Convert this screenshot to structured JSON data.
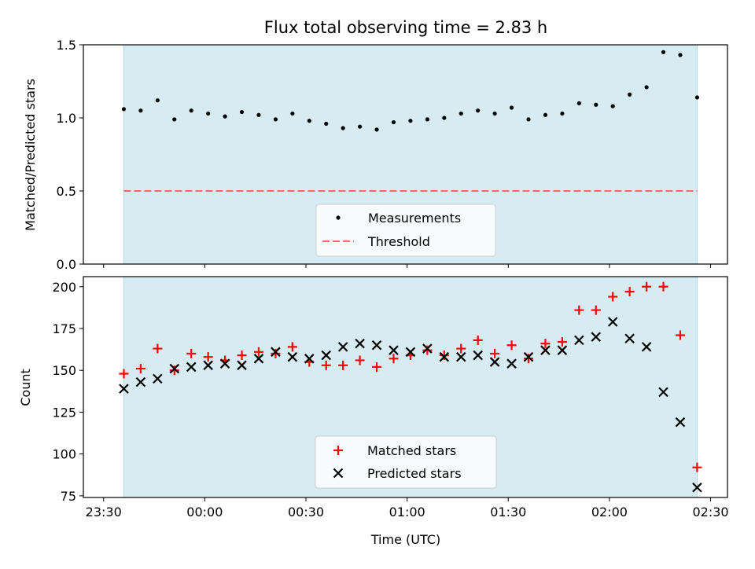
{
  "title": "Flux total observing time = 2.83 h",
  "colors": {
    "shade": "#add8e6",
    "matched": "#ff0000",
    "predicted": "#000000",
    "threshold": "#ff6666",
    "measurement": "#000000"
  },
  "chart_data": [
    {
      "type": "scatter",
      "ylabel": "Matched/Predicted stars",
      "ylim": [
        0,
        1.5
      ],
      "y_ticks": [
        0.0,
        0.5,
        1.0,
        1.5
      ],
      "y_tick_labels": [
        "0.0",
        "0.5",
        "1.0",
        "1.5"
      ],
      "x_tick_labels": [],
      "grid": false,
      "legend_position": "lower-center",
      "shaded_interval": [
        "23:36",
        "02:26"
      ],
      "x": [
        "23:36",
        "23:41",
        "23:46",
        "23:51",
        "23:56",
        "00:01",
        "00:06",
        "00:11",
        "00:16",
        "00:21",
        "00:26",
        "00:31",
        "00:36",
        "00:41",
        "00:46",
        "00:51",
        "00:56",
        "01:01",
        "01:06",
        "01:11",
        "01:16",
        "01:21",
        "01:26",
        "01:31",
        "01:36",
        "01:41",
        "01:46",
        "01:51",
        "01:56",
        "02:01",
        "02:06",
        "02:11",
        "02:16",
        "02:21",
        "02:26"
      ],
      "series": [
        {
          "name": "Measurements",
          "values": [
            1.06,
            1.05,
            1.12,
            0.99,
            1.05,
            1.03,
            1.01,
            1.04,
            1.02,
            0.99,
            1.03,
            0.98,
            0.96,
            0.93,
            0.94,
            0.92,
            0.97,
            0.98,
            0.99,
            1.0,
            1.03,
            1.05,
            1.03,
            1.07,
            0.99,
            1.02,
            1.03,
            1.1,
            1.09,
            1.08,
            1.16,
            1.21,
            1.45,
            1.43,
            1.14
          ]
        }
      ],
      "threshold": {
        "name": "Threshold",
        "value": 0.5
      }
    },
    {
      "type": "scatter",
      "xlabel": "Time (UTC)",
      "ylabel": "Count",
      "ylim": [
        74,
        206
      ],
      "y_ticks": [
        75,
        100,
        125,
        150,
        175,
        200
      ],
      "y_tick_labels": [
        "75",
        "100",
        "125",
        "150",
        "175",
        "200"
      ],
      "x_tick_labels": [
        "23:30",
        "00:00",
        "00:30",
        "01:00",
        "01:30",
        "02:00",
        "02:30"
      ],
      "grid": false,
      "legend_position": "lower-center",
      "shaded_interval": [
        "23:36",
        "02:26"
      ],
      "x": [
        "23:36",
        "23:41",
        "23:46",
        "23:51",
        "23:56",
        "00:01",
        "00:06",
        "00:11",
        "00:16",
        "00:21",
        "00:26",
        "00:31",
        "00:36",
        "00:41",
        "00:46",
        "00:51",
        "00:56",
        "01:01",
        "01:06",
        "01:11",
        "01:16",
        "01:21",
        "01:26",
        "01:31",
        "01:36",
        "01:41",
        "01:46",
        "01:51",
        "01:56",
        "02:01",
        "02:06",
        "02:11",
        "02:16",
        "02:21",
        "02:26"
      ],
      "series": [
        {
          "name": "Matched stars",
          "marker": "plus",
          "values": [
            148,
            151,
            163,
            150,
            160,
            158,
            156,
            159,
            161,
            160,
            164,
            155,
            153,
            153,
            156,
            152,
            157,
            159,
            162,
            159,
            163,
            168,
            160,
            165,
            157,
            166,
            167,
            186,
            186,
            194,
            197,
            200,
            200,
            171,
            92
          ]
        },
        {
          "name": "Predicted stars",
          "marker": "x",
          "values": [
            139,
            143,
            145,
            151,
            152,
            153,
            154,
            153,
            157,
            161,
            158,
            157,
            159,
            164,
            166,
            165,
            162,
            161,
            163,
            158,
            158,
            159,
            155,
            154,
            158,
            162,
            162,
            168,
            170,
            179,
            169,
            164,
            137,
            119,
            80
          ]
        }
      ]
    }
  ]
}
